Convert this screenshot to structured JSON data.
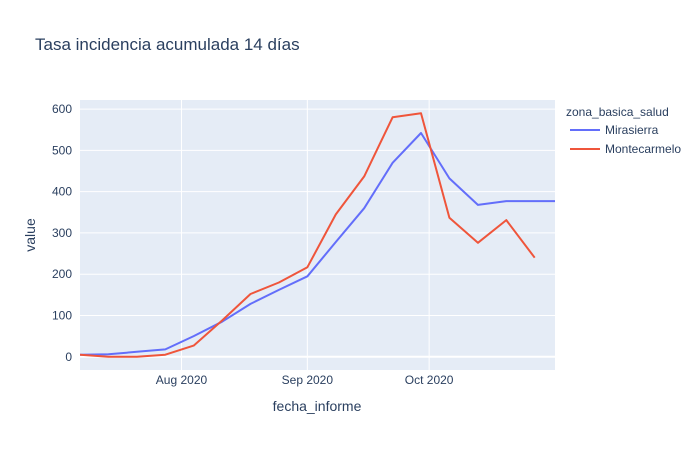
{
  "chart_data": {
    "type": "line",
    "title": "Tasa incidencia acumulada 14 días",
    "xlabel": "fecha_informe",
    "ylabel": "value",
    "x_type": "date",
    "x_range": [
      "2020-07-07",
      "2020-11-01"
    ],
    "ylim": [
      -32,
      622
    ],
    "yticks": [
      0,
      100,
      200,
      300,
      400,
      500,
      600
    ],
    "xticks": [
      {
        "date": "2020-08-01",
        "label": "Aug 2020"
      },
      {
        "date": "2020-09-01",
        "label": "Sep 2020"
      },
      {
        "date": "2020-10-01",
        "label": "Oct 2020"
      }
    ],
    "grid": true,
    "legend": {
      "title": "zona_basica_salud",
      "position": "top-right"
    },
    "colors": {
      "plot_bg": "#e5ecf6",
      "grid": "#ffffff",
      "text": "#2a3f5f"
    },
    "series": [
      {
        "name": "Mirasierra",
        "color": "#636efa",
        "points": [
          [
            "2020-07-07",
            5
          ],
          [
            "2020-07-14",
            6
          ],
          [
            "2020-07-21",
            12
          ],
          [
            "2020-07-28",
            18
          ],
          [
            "2020-08-04",
            50
          ],
          [
            "2020-08-11",
            85
          ],
          [
            "2020-08-18",
            128
          ],
          [
            "2020-08-25",
            162
          ],
          [
            "2020-09-01",
            195
          ],
          [
            "2020-09-08",
            278
          ],
          [
            "2020-09-15",
            360
          ],
          [
            "2020-09-22",
            470
          ],
          [
            "2020-09-29",
            542
          ],
          [
            "2020-10-06",
            432
          ],
          [
            "2020-10-13",
            368
          ],
          [
            "2020-10-20",
            377
          ],
          [
            "2020-10-27",
            377
          ],
          [
            "2020-11-01",
            377
          ]
        ]
      },
      {
        "name": "Montecarmelo",
        "color": "#ef553b",
        "points": [
          [
            "2020-07-07",
            5
          ],
          [
            "2020-07-14",
            0
          ],
          [
            "2020-07-21",
            0
          ],
          [
            "2020-07-28",
            5
          ],
          [
            "2020-08-04",
            27
          ],
          [
            "2020-08-11",
            88
          ],
          [
            "2020-08-18",
            152
          ],
          [
            "2020-08-25",
            180
          ],
          [
            "2020-09-01",
            217
          ],
          [
            "2020-09-08",
            345
          ],
          [
            "2020-09-15",
            437
          ],
          [
            "2020-09-22",
            580
          ],
          [
            "2020-09-29",
            590
          ],
          [
            "2020-10-06",
            337
          ],
          [
            "2020-10-13",
            276
          ],
          [
            "2020-10-20",
            331
          ],
          [
            "2020-10-27",
            240
          ]
        ]
      }
    ]
  }
}
